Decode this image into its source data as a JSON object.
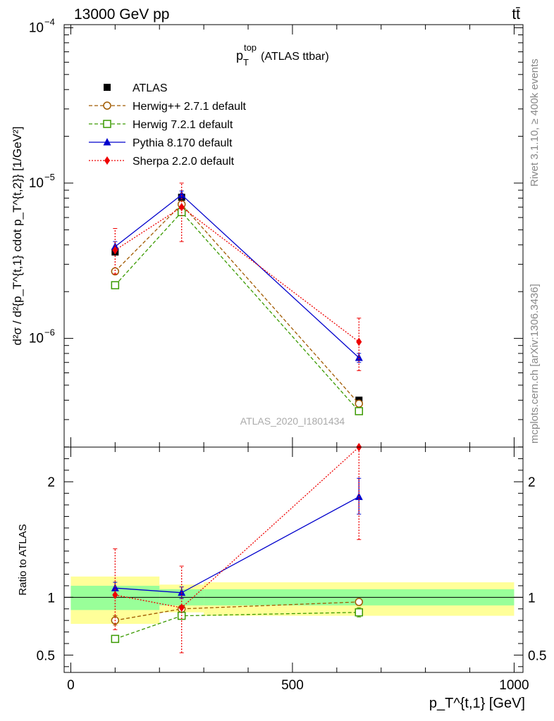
{
  "header": {
    "left": "13000 GeV pp",
    "right": "tt̄"
  },
  "side_text": {
    "rivet": "Rivet 3.1.10, ≥ 400k events",
    "mcplots": "mcplots.cern.ch [arXiv:1306.3436]"
  },
  "watermark": "ATLAS_2020_I1801434",
  "plot_title": {
    "main": "p",
    "sup": "top",
    "sub": "T",
    "rest": "(ATLAS ttbar)"
  },
  "ylabel_top": "d²σ / d²{p_T^{t,1} cdot p_T^{t,2}} [1/GeV²]",
  "ylabel_bottom": "Ratio to ATLAS",
  "xlabel": "p_T^{t,1} [GeV]",
  "colors": {
    "atlas": "#000000",
    "herwigpp": "#a05a00",
    "herwig7": "#3a9a00",
    "pythia": "#0000cc",
    "sherpa": "#ee0000",
    "band_inner": "#99ff99",
    "band_outer": "#ffff99"
  },
  "chart_data": [
    {
      "type": "scatter",
      "title": "p_T^top (ATLAS ttbar)",
      "scale": "log",
      "xlim": [
        -15,
        1020
      ],
      "ylim_exp": [
        -6.7,
        -3.98
      ],
      "yticks_labeled": [
        {
          "exp": -4,
          "label": "10",
          "sup": "−4"
        },
        {
          "exp": -5,
          "label": "10",
          "sup": "−5"
        },
        {
          "exp": -6,
          "label": "10",
          "sup": "−6"
        }
      ],
      "legend": [
        {
          "key": "atlas",
          "label": "ATLAS"
        },
        {
          "key": "herwigpp",
          "label": "Herwig++ 2.7.1 default"
        },
        {
          "key": "herwig7",
          "label": "Herwig 7.2.1 default"
        },
        {
          "key": "pythia",
          "label": "Pythia 8.170 default"
        },
        {
          "key": "sherpa",
          "label": "Sherpa 2.2.0 default"
        }
      ],
      "series": [
        {
          "key": "atlas",
          "name": "ATLAS",
          "x": [
            100,
            250,
            650
          ],
          "y": [
            3.6e-06,
            8.1e-06,
            4e-07
          ]
        },
        {
          "key": "herwigpp",
          "name": "Herwig++ 2.7.1 default",
          "x": [
            100,
            250,
            650
          ],
          "y": [
            2.7e-06,
            7.3e-06,
            3.8e-07
          ]
        },
        {
          "key": "herwig7",
          "name": "Herwig 7.2.1 default",
          "x": [
            100,
            250,
            650
          ],
          "y": [
            2.2e-06,
            6.5e-06,
            3.4e-07
          ]
        },
        {
          "key": "pythia",
          "name": "Pythia 8.170 default",
          "x": [
            100,
            250,
            650
          ],
          "y": [
            3.9e-06,
            8.4e-06,
            7.5e-07
          ],
          "yerr_lo": [
            3.6e-06,
            7.9e-06,
            7e-07
          ],
          "yerr_hi": [
            4.2e-06,
            8.9e-06,
            8e-07
          ]
        },
        {
          "key": "sherpa",
          "name": "Sherpa 2.2.0 default",
          "x": [
            100,
            250,
            650
          ],
          "y": [
            3.7e-06,
            7e-06,
            9.5e-07
          ],
          "yerr_lo": [
            2.6e-06,
            4.2e-06,
            6.2e-07
          ],
          "yerr_hi": [
            5.1e-06,
            1e-05,
            1.35e-06
          ]
        }
      ]
    },
    {
      "type": "scatter",
      "title": "Ratio to ATLAS",
      "xlim": [
        -15,
        1020
      ],
      "ylim": [
        0.35,
        2.3
      ],
      "xticks": [
        0,
        500,
        1000
      ],
      "xtick_labels": [
        "0",
        "500",
        "1000"
      ],
      "yticks": [
        0.5,
        1,
        2
      ],
      "ytick_labels": [
        "0.5",
        "1",
        "2"
      ],
      "bands": [
        {
          "x0": 0,
          "x1": 200,
          "inner": [
            0.89,
            1.1
          ],
          "outer": [
            0.77,
            1.18
          ]
        },
        {
          "x0": 200,
          "x1": 300,
          "inner": [
            0.93,
            1.07
          ],
          "outer": [
            0.87,
            1.11
          ]
        },
        {
          "x0": 300,
          "x1": 1000,
          "inner": [
            0.93,
            1.07
          ],
          "outer": [
            0.84,
            1.13
          ]
        }
      ],
      "series": [
        {
          "key": "herwigpp",
          "name": "Herwig++ 2.7.1 default",
          "x": [
            100,
            250,
            650
          ],
          "y": [
            0.8,
            0.9,
            0.96
          ],
          "yerr_lo": [
            0.76,
            0.87,
            0.93
          ],
          "yerr_hi": [
            0.84,
            0.93,
            0.99
          ]
        },
        {
          "key": "herwig7",
          "name": "Herwig 7.2.1 default",
          "x": [
            100,
            250,
            650
          ],
          "y": [
            0.64,
            0.84,
            0.87
          ],
          "yerr_lo": [
            0.61,
            0.81,
            0.83
          ],
          "yerr_hi": [
            0.67,
            0.87,
            0.91
          ]
        },
        {
          "key": "pythia",
          "name": "Pythia 8.170 default",
          "x": [
            100,
            250,
            650
          ],
          "y": [
            1.08,
            1.04,
            1.87
          ],
          "yerr_lo": [
            1.03,
            0.99,
            1.72
          ],
          "yerr_hi": [
            1.13,
            1.09,
            2.03
          ]
        },
        {
          "key": "sherpa",
          "name": "Sherpa 2.2.0 default",
          "x": [
            100,
            250,
            650
          ],
          "y": [
            1.02,
            0.91,
            2.3
          ],
          "yerr_lo": [
            0.72,
            0.52,
            1.5
          ],
          "yerr_hi": [
            1.42,
            1.27,
            2.3
          ]
        }
      ]
    }
  ]
}
